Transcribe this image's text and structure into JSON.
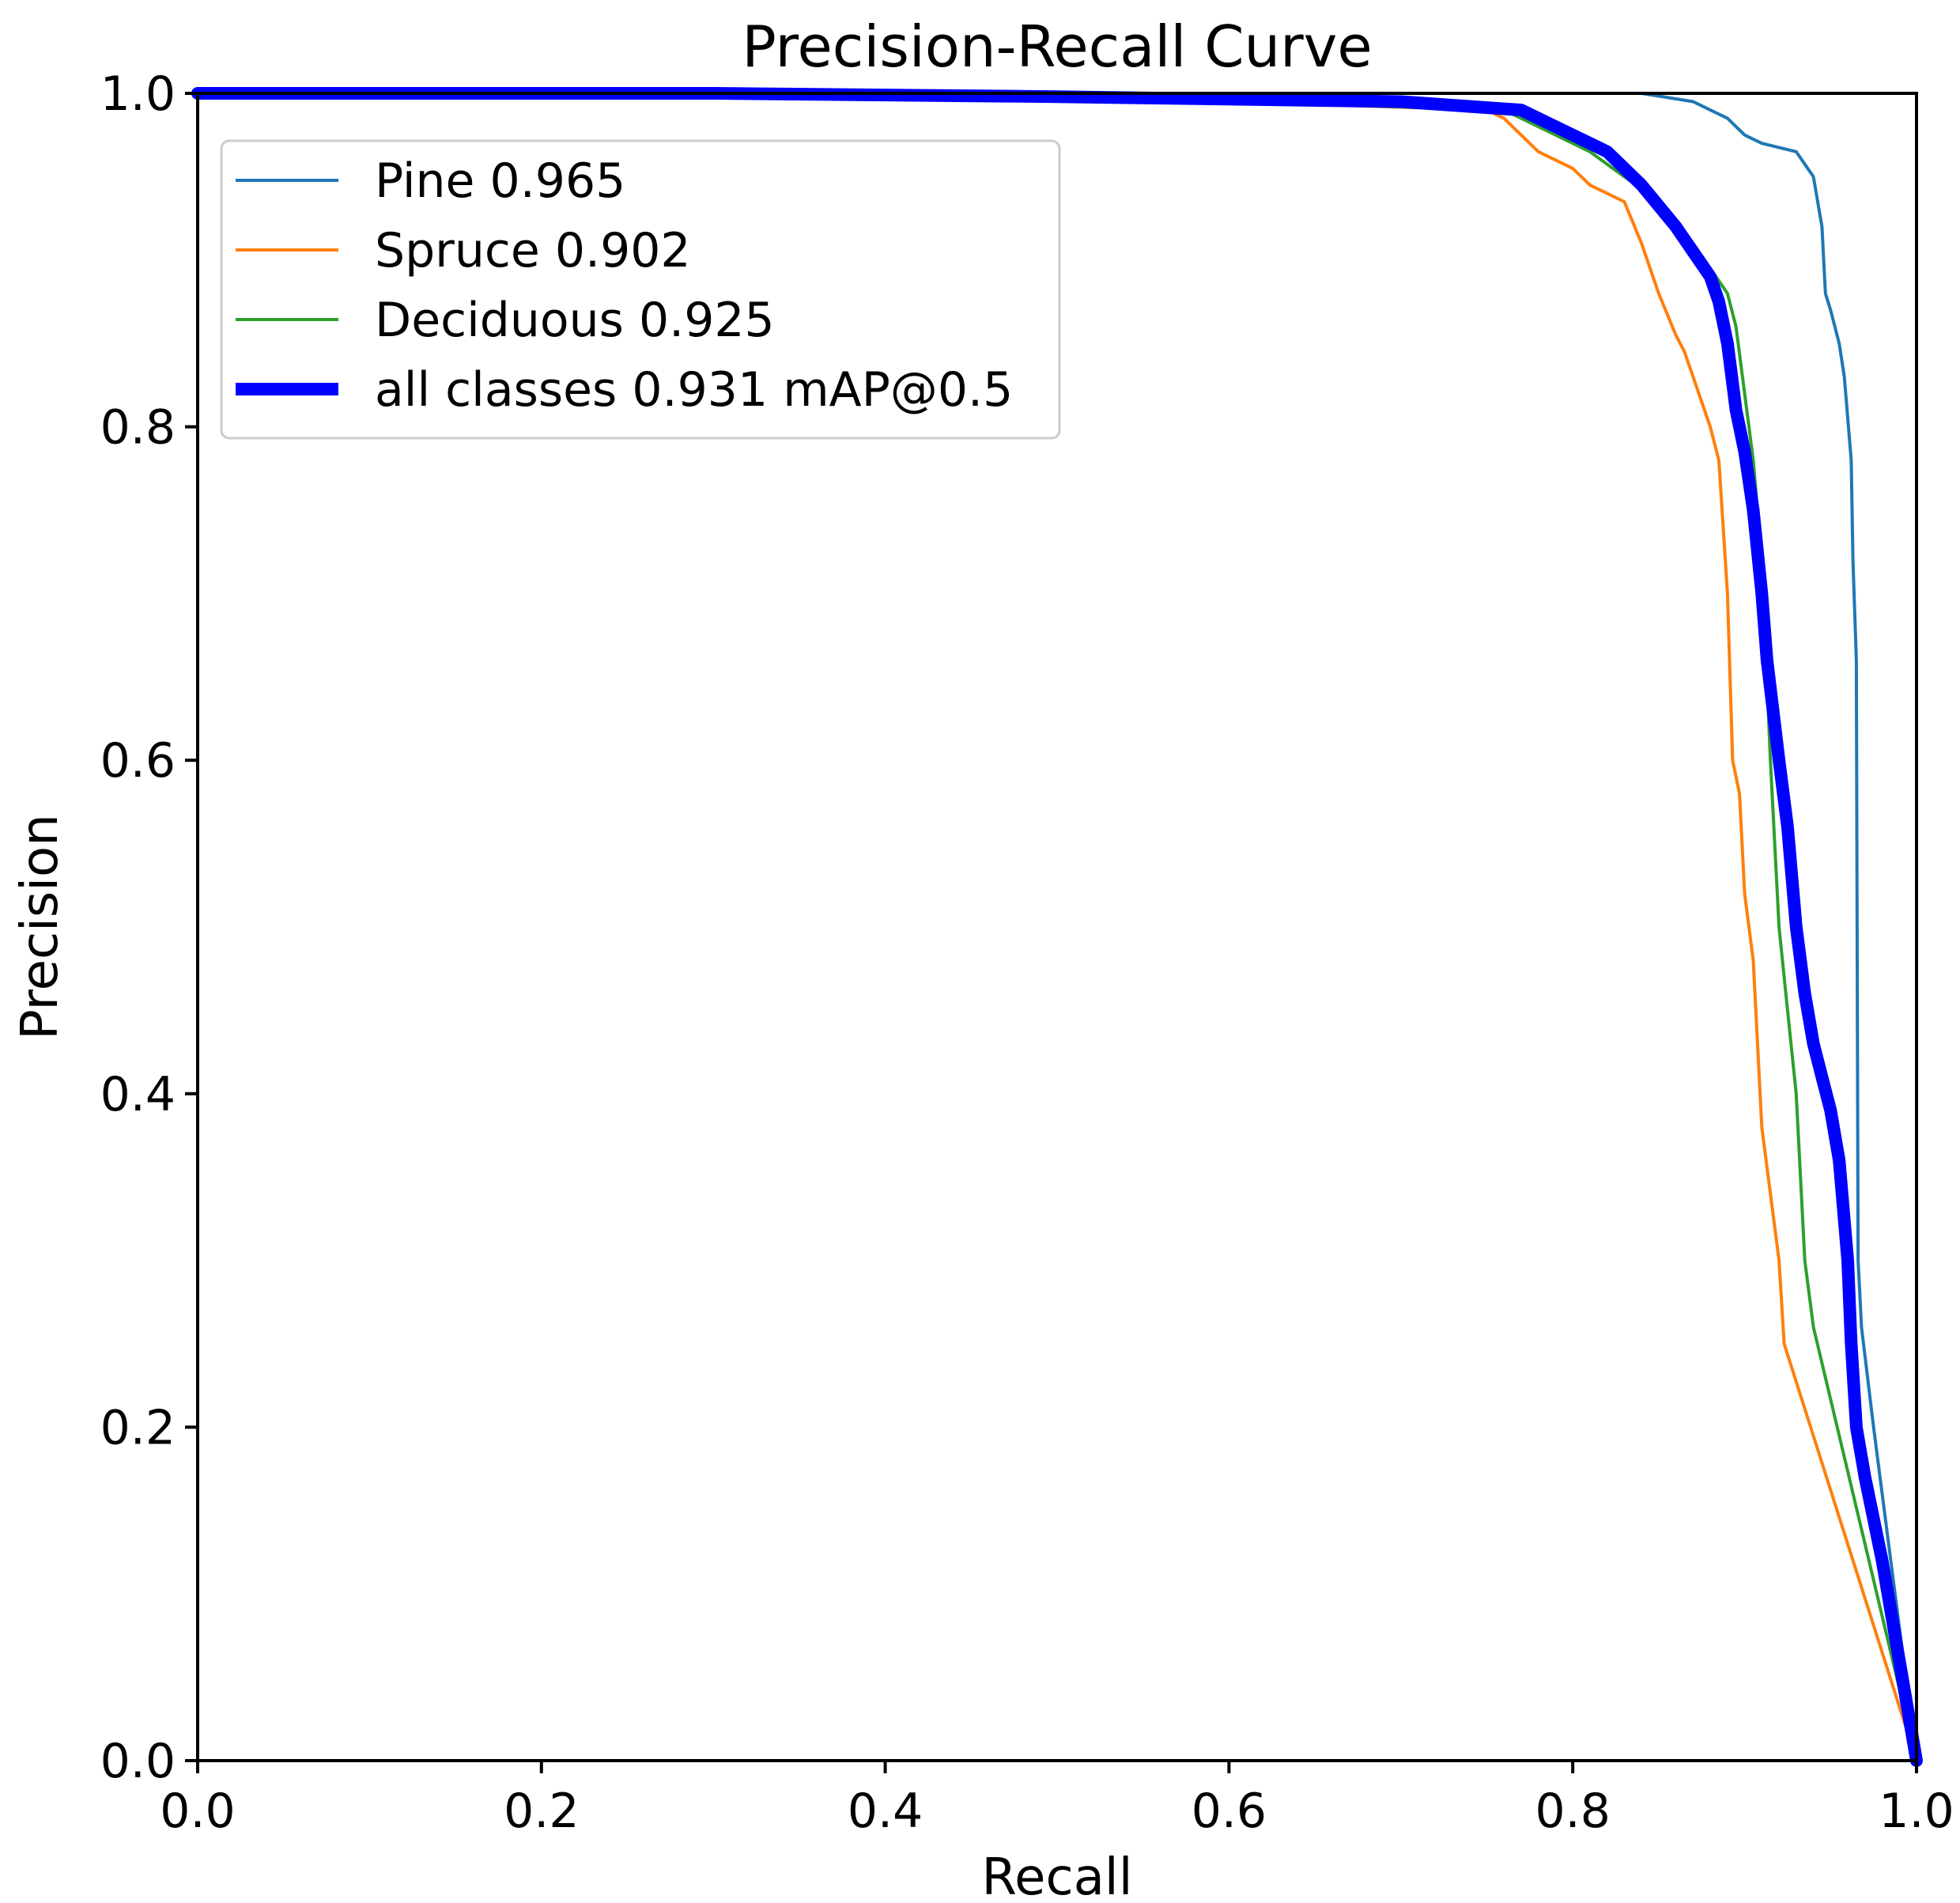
{
  "chart_data": {
    "type": "line",
    "title": "Precision-Recall Curve",
    "xlabel": "Recall",
    "ylabel": "Precision",
    "xlim": [
      0,
      1
    ],
    "ylim": [
      0,
      1
    ],
    "xticks": [
      "0.0",
      "0.2",
      "0.4",
      "0.6",
      "0.8",
      "1.0"
    ],
    "yticks": [
      "0.0",
      "0.2",
      "0.4",
      "0.6",
      "0.8",
      "1.0"
    ],
    "grid": false,
    "legend_position": "top-left",
    "series": [
      {
        "name": "Pine 0.965",
        "color": "#1f77b4",
        "linewidth": "thin",
        "x": [
          0.0,
          0.3,
          0.6,
          0.84,
          0.87,
          0.89,
          0.9,
          0.91,
          0.93,
          0.94,
          0.945,
          0.947,
          0.95,
          0.955,
          0.958,
          0.962,
          0.963,
          0.965,
          0.966,
          0.967,
          0.968,
          0.975,
          1.0
        ],
        "y": [
          1.0,
          1.0,
          1.0,
          1.0,
          0.995,
          0.985,
          0.975,
          0.97,
          0.965,
          0.95,
          0.92,
          0.88,
          0.87,
          0.85,
          0.83,
          0.78,
          0.72,
          0.66,
          0.3,
          0.28,
          0.26,
          0.2,
          0.0
        ]
      },
      {
        "name": "Spruce 0.902",
        "color": "#ff7f0e",
        "linewidth": "thin",
        "x": [
          0.0,
          0.3,
          0.6,
          0.75,
          0.76,
          0.78,
          0.8,
          0.81,
          0.83,
          0.84,
          0.85,
          0.86,
          0.865,
          0.87,
          0.88,
          0.885,
          0.89,
          0.893,
          0.897,
          0.9,
          0.905,
          0.908,
          0.91,
          0.915,
          0.92,
          0.923,
          1.0
        ],
        "y": [
          1.0,
          1.0,
          0.995,
          0.99,
          0.985,
          0.965,
          0.955,
          0.945,
          0.935,
          0.91,
          0.88,
          0.855,
          0.845,
          0.83,
          0.8,
          0.78,
          0.7,
          0.6,
          0.58,
          0.52,
          0.48,
          0.42,
          0.38,
          0.34,
          0.3,
          0.25,
          0.0
        ]
      },
      {
        "name": "Deciduous 0.925",
        "color": "#2ca02c",
        "linewidth": "thin",
        "x": [
          0.0,
          0.3,
          0.6,
          0.76,
          0.77,
          0.79,
          0.81,
          0.83,
          0.85,
          0.87,
          0.89,
          0.895,
          0.9,
          0.905,
          0.91,
          0.915,
          0.92,
          0.925,
          0.93,
          0.935,
          0.94,
          1.0
        ],
        "y": [
          1.0,
          1.0,
          0.995,
          0.99,
          0.985,
          0.975,
          0.965,
          0.95,
          0.935,
          0.91,
          0.88,
          0.86,
          0.82,
          0.78,
          0.72,
          0.6,
          0.5,
          0.45,
          0.4,
          0.3,
          0.26,
          0.0
        ]
      },
      {
        "name": "all classes 0.931 mAP@0.5",
        "color": "#0000ff",
        "linewidth": "thick",
        "x": [
          0.0,
          0.3,
          0.5,
          0.7,
          0.77,
          0.79,
          0.82,
          0.84,
          0.86,
          0.87,
          0.88,
          0.885,
          0.89,
          0.895,
          0.9,
          0.905,
          0.91,
          0.913,
          0.92,
          0.925,
          0.93,
          0.935,
          0.94,
          0.945,
          0.95,
          0.955,
          0.96,
          0.962,
          0.965,
          0.97,
          0.98,
          0.99,
          1.0
        ],
        "y": [
          1.0,
          1.0,
          0.998,
          0.995,
          0.99,
          0.98,
          0.965,
          0.945,
          0.92,
          0.905,
          0.89,
          0.875,
          0.85,
          0.81,
          0.785,
          0.75,
          0.7,
          0.66,
          0.6,
          0.56,
          0.5,
          0.46,
          0.43,
          0.41,
          0.39,
          0.36,
          0.3,
          0.25,
          0.2,
          0.17,
          0.12,
          0.06,
          0.0
        ]
      }
    ]
  }
}
